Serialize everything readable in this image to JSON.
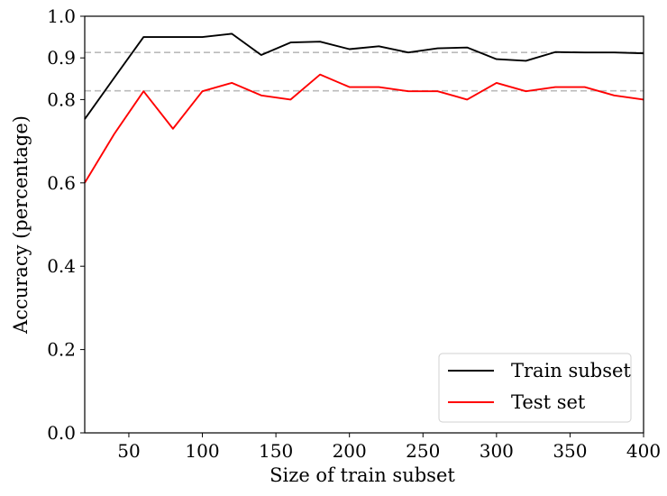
{
  "chart_data": {
    "type": "line",
    "title": "",
    "xlabel": "Size of train subset",
    "ylabel": "Accuracy (percentage)",
    "xlim": [
      20,
      400
    ],
    "ylim": [
      0.0,
      1.0
    ],
    "x_ticks": [
      50,
      100,
      150,
      200,
      250,
      300,
      350,
      400
    ],
    "x_tick_labels": [
      "50",
      "100",
      "150",
      "200",
      "250",
      "300",
      "350",
      "400"
    ],
    "y_ticks": [
      0.0,
      0.2,
      0.4,
      0.6,
      0.8,
      0.9,
      1.0
    ],
    "y_tick_labels": [
      "0.0",
      "0.2",
      "0.4",
      "0.6",
      "0.8",
      "0.9",
      "1.0"
    ],
    "grid": false,
    "legend_position": "bottom-right",
    "x": [
      20,
      40,
      60,
      80,
      100,
      120,
      140,
      160,
      180,
      200,
      220,
      240,
      260,
      280,
      300,
      320,
      340,
      360,
      380,
      400
    ],
    "series": [
      {
        "name": "Train subset",
        "color": "#000000",
        "values": [
          0.753,
          0.852,
          0.95,
          0.95,
          0.95,
          0.958,
          0.907,
          0.937,
          0.939,
          0.921,
          0.928,
          0.913,
          0.923,
          0.925,
          0.897,
          0.893,
          0.914,
          0.913,
          0.913,
          0.911
        ]
      },
      {
        "name": "Test set",
        "color": "#ff0000",
        "values": [
          0.6,
          0.717,
          0.82,
          0.73,
          0.82,
          0.84,
          0.81,
          0.8,
          0.86,
          0.83,
          0.83,
          0.82,
          0.82,
          0.8,
          0.84,
          0.82,
          0.83,
          0.83,
          0.81,
          0.8
        ]
      }
    ],
    "reference_lines": [
      {
        "y": 0.913,
        "color": "#bbbbbb",
        "style": "dashed"
      },
      {
        "y": 0.821,
        "color": "#bbbbbb",
        "style": "dashed"
      }
    ]
  }
}
